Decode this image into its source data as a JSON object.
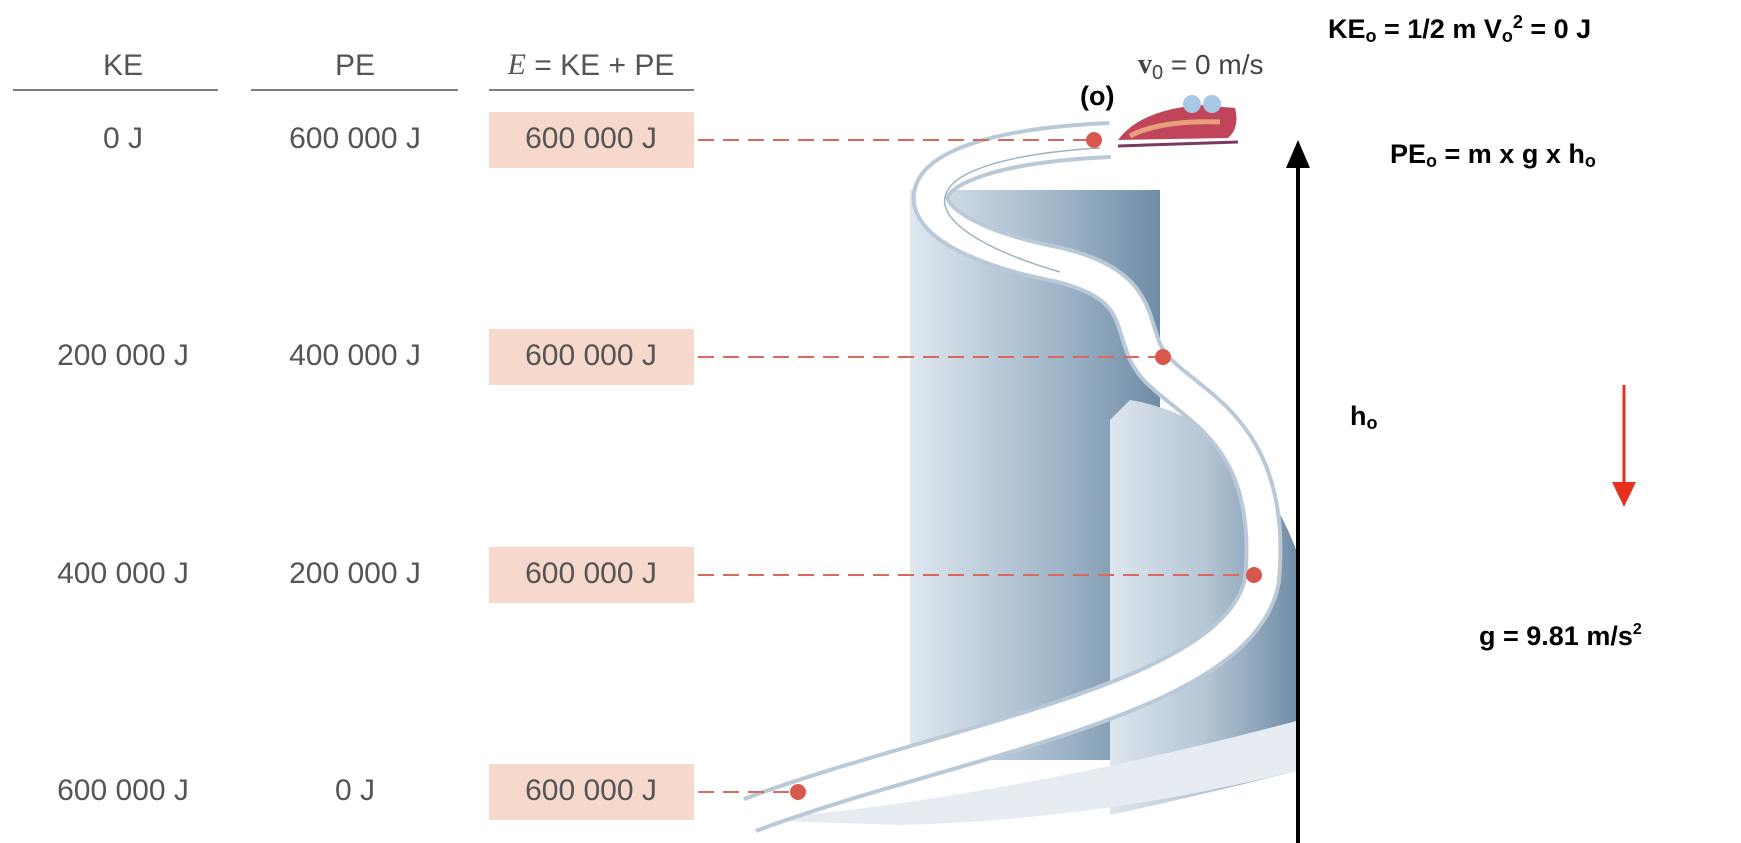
{
  "table": {
    "headers": {
      "ke": "KE",
      "pe": "PE",
      "e": [
        "E",
        " = KE + PE"
      ]
    },
    "rows": [
      {
        "ke": "0 J",
        "pe": "600 000 J",
        "e": "600 000 J"
      },
      {
        "ke": "200 000 J",
        "pe": "400 000 J",
        "e": "600 000 J"
      },
      {
        "ke": "400 000 J",
        "pe": "200 000 J",
        "e": "600 000 J"
      },
      {
        "ke": "600 000 J",
        "pe": "0 J",
        "e": "600 000 J"
      }
    ]
  },
  "figure": {
    "start_label": "(o)",
    "velocity": [
      "v",
      "0",
      " = 0 m/s"
    ]
  },
  "annotations": {
    "ke_formula": [
      "KE",
      "o",
      " = 1/2 m V",
      "o",
      "2",
      " = 0 J"
    ],
    "pe_formula": [
      "PE",
      "o",
      " = m x g x h",
      "o"
    ],
    "height": [
      "h",
      "o"
    ],
    "gravity": [
      "g = 9.81 m/s",
      "2"
    ]
  }
}
